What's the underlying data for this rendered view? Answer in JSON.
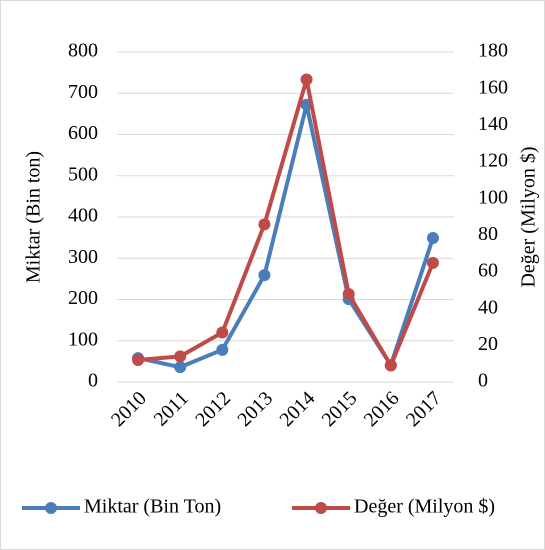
{
  "chart_data": {
    "type": "line",
    "y_label": "Miktar (Bin ton)",
    "y2_label": "Değer (Milyon $)",
    "categories": [
      "2010",
      "2011",
      "2012",
      "2013",
      "2014",
      "2015",
      "2016",
      "2017"
    ],
    "series": [
      {
        "name": "Miktar (Bin Ton)",
        "color": "#4a7ebb",
        "values": [
          58,
          36,
          78,
          259,
          672,
          201,
          41,
          349
        ]
      },
      {
        "name": "Değer (Milyon $)",
        "color": "#be4b48",
        "axis": "y2",
        "values": [
          12,
          14,
          27,
          86,
          165,
          48,
          9,
          65
        ]
      }
    ],
    "ylim": [
      0,
      800
    ],
    "yticks": [
      0,
      100,
      200,
      300,
      400,
      500,
      600,
      700,
      800
    ],
    "y2lim": [
      0,
      180
    ],
    "y2ticks": [
      0,
      20,
      40,
      60,
      80,
      100,
      120,
      140,
      160,
      180
    ],
    "grid": true,
    "legend": "bottom"
  }
}
